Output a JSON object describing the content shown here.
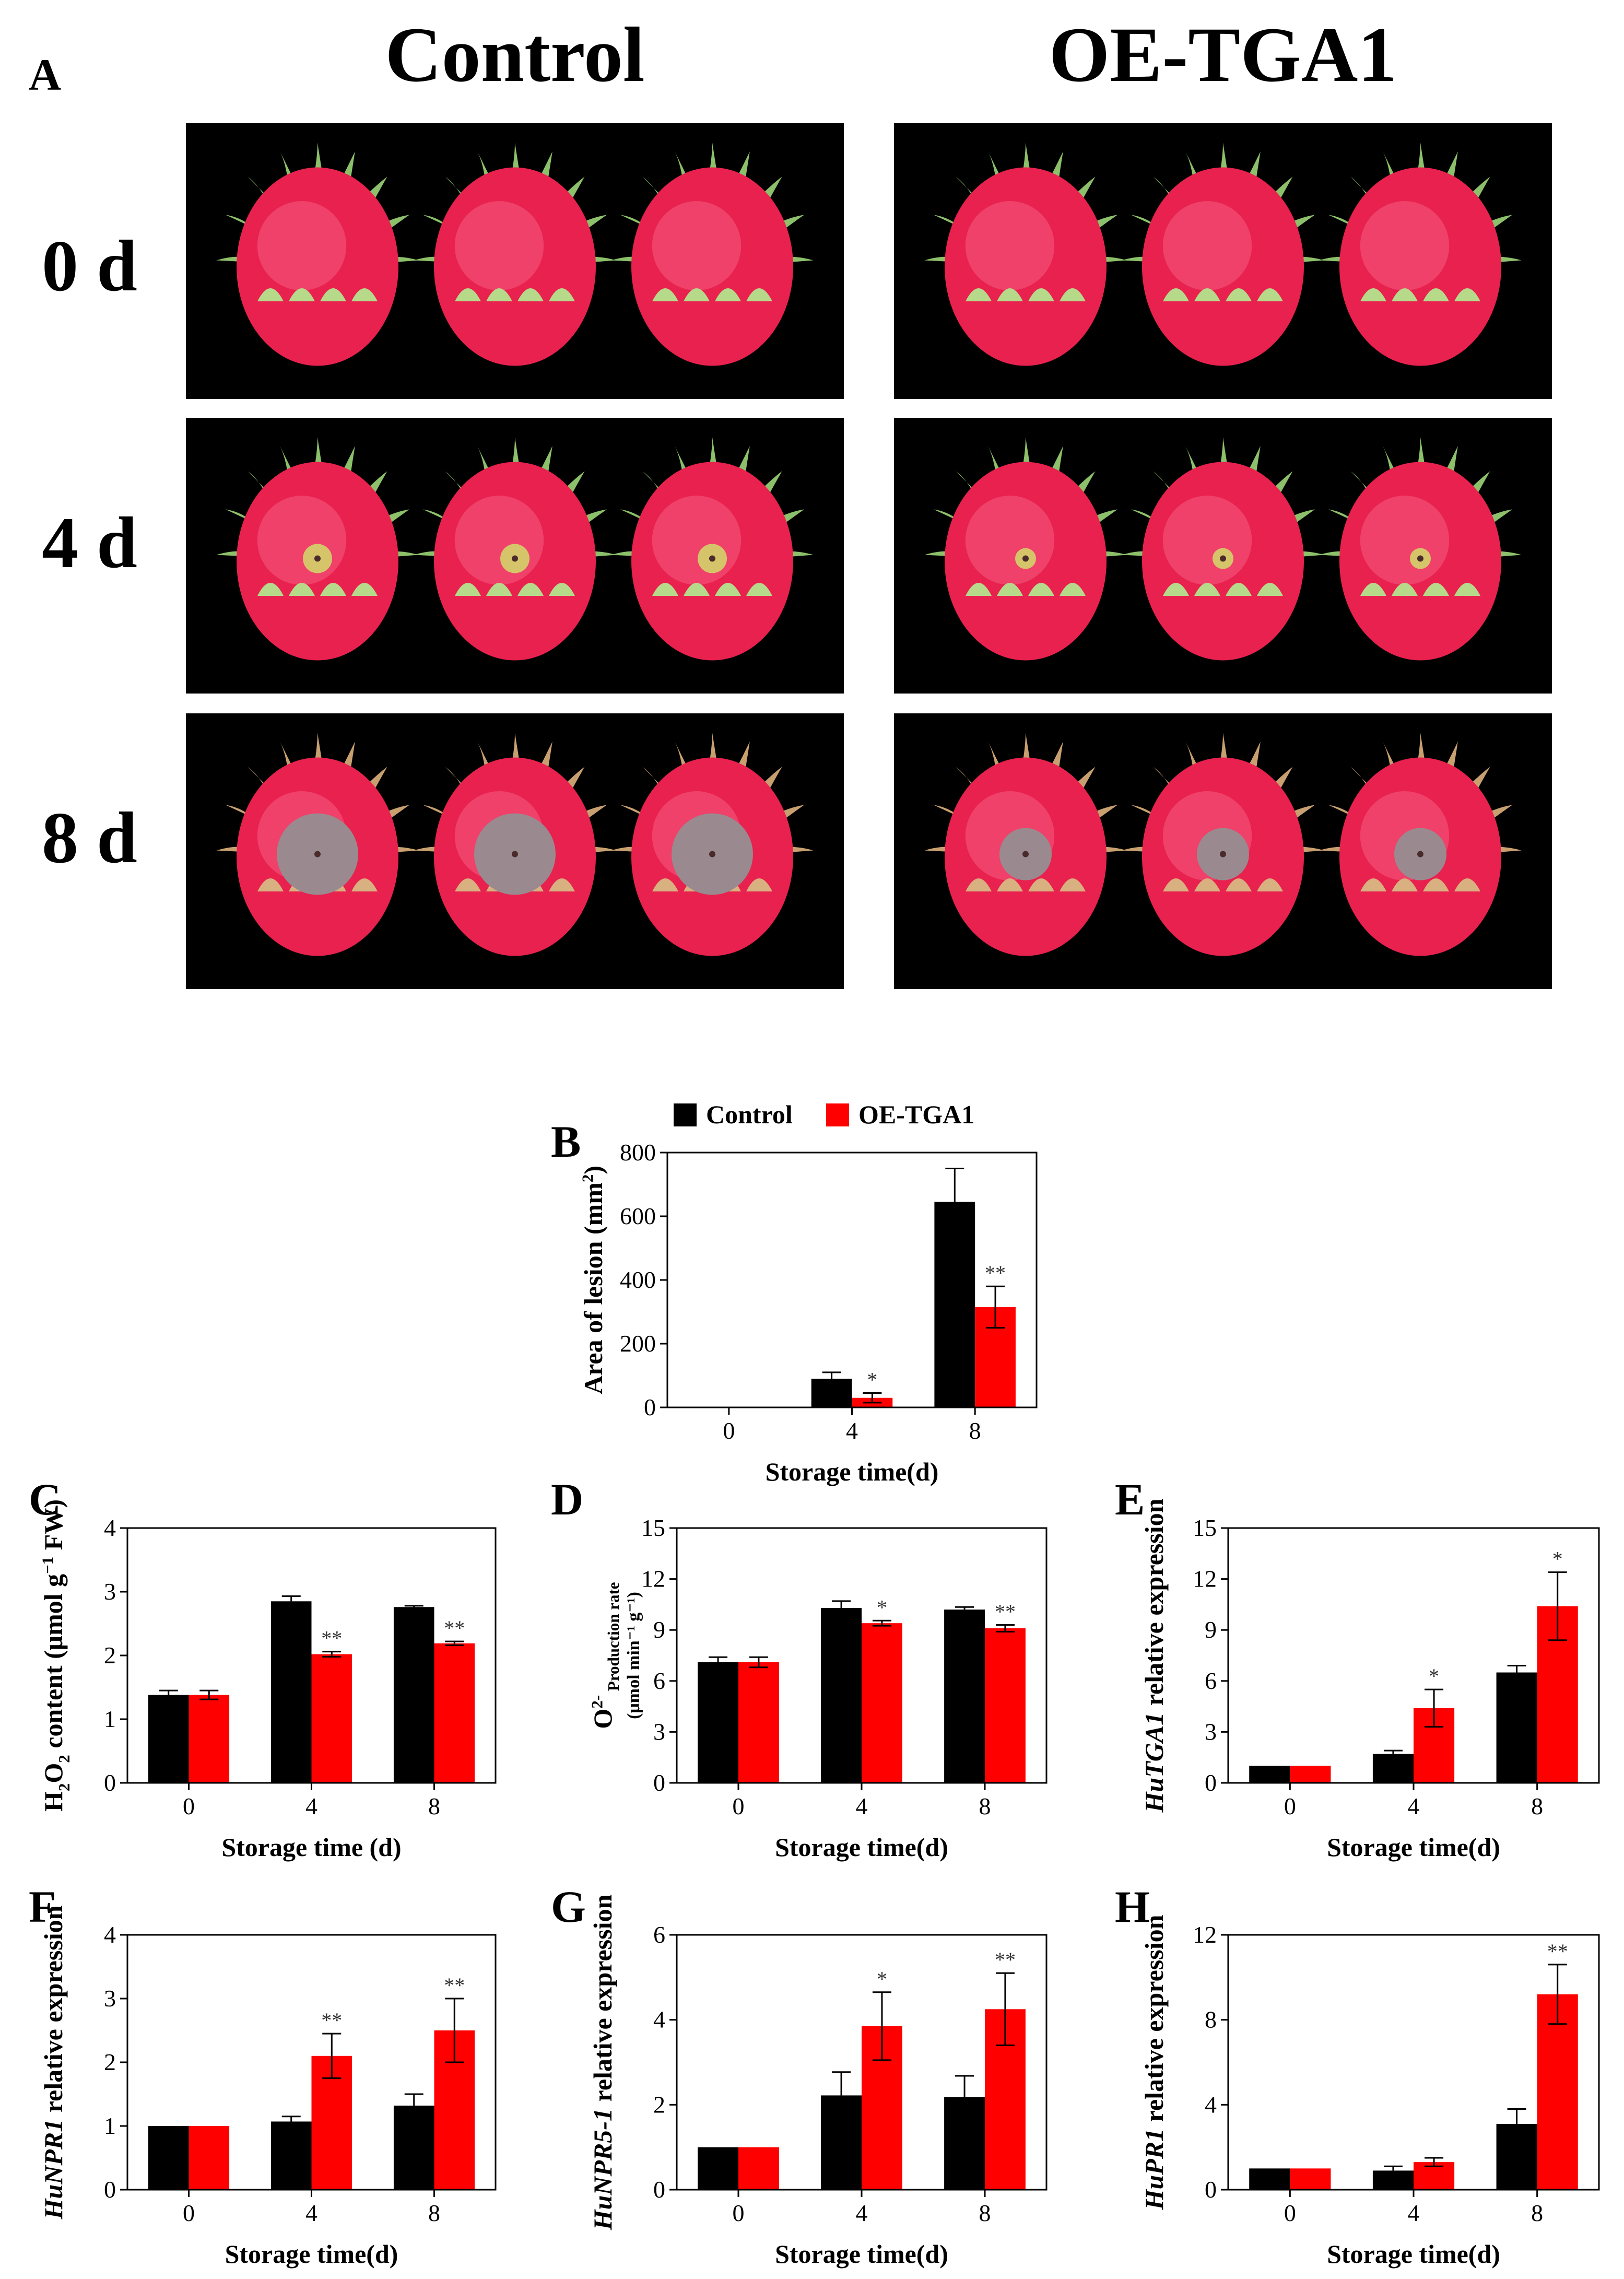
{
  "panel_a": {
    "letter": "A",
    "columns": [
      "Control",
      "OE-TGA1"
    ],
    "rows": [
      "0 d",
      "4 d",
      "8 d"
    ],
    "photo_caption": "Dragon fruit photographs"
  },
  "colors": {
    "control": "#000000",
    "treatment": "#ff0000",
    "photo_bg": "#000000"
  },
  "chart_data": [
    {
      "id": "B",
      "letter": "B",
      "type": "bar",
      "legend": [
        "Control",
        "OE-TGA1"
      ],
      "xlabel": "Storage time(d)",
      "ylabel_parts": [
        {
          "t": "Area of lesion (mm"
        },
        {
          "t": "2",
          "sup": true
        },
        {
          "t": ")"
        }
      ],
      "categories": [
        "0",
        "4",
        "8"
      ],
      "ylim": [
        0,
        800
      ],
      "yticks": [
        0,
        200,
        400,
        600,
        800
      ],
      "series": [
        {
          "name": "Control",
          "values": [
            0,
            90,
            645
          ],
          "errors": [
            0,
            20,
            105
          ]
        },
        {
          "name": "OE-TGA1",
          "values": [
            0,
            30,
            315
          ],
          "errors": [
            0,
            15,
            65
          ]
        }
      ],
      "sig": [
        null,
        "*",
        "**"
      ]
    },
    {
      "id": "C",
      "letter": "C",
      "type": "bar",
      "xlabel": "Storage time (d)",
      "ylabel_parts": [
        {
          "t": "H"
        },
        {
          "t": "2",
          "sub": true
        },
        {
          "t": "O"
        },
        {
          "t": "2",
          "sub": true
        },
        {
          "t": " content (μmol g"
        },
        {
          "t": "−1",
          "sup": true
        },
        {
          "t": " FW)"
        }
      ],
      "categories": [
        "0",
        "4",
        "8"
      ],
      "ylim": [
        0,
        4
      ],
      "yticks": [
        0,
        1,
        2,
        3,
        4
      ],
      "series": [
        {
          "name": "Control",
          "values": [
            1.38,
            2.85,
            2.76
          ],
          "errors": [
            0.07,
            0.08,
            0.02
          ]
        },
        {
          "name": "OE-TGA1",
          "values": [
            1.38,
            2.02,
            2.19
          ],
          "errors": [
            0.07,
            0.04,
            0.03
          ]
        }
      ],
      "sig": [
        null,
        "**",
        "**"
      ]
    },
    {
      "id": "D",
      "letter": "D",
      "type": "bar",
      "xlabel": "Storage time(d)",
      "ylabel_parts": [
        {
          "t": "O"
        },
        {
          "t": "2-",
          "sup": true
        },
        {
          "t": " Production rate",
          "sub": true
        }
      ],
      "ylabel_unit": "(μmol min⁻¹ g⁻¹)",
      "categories": [
        "0",
        "4",
        "8"
      ],
      "ylim": [
        0,
        15
      ],
      "yticks": [
        0,
        3,
        6,
        9,
        12,
        15
      ],
      "series": [
        {
          "name": "Control",
          "values": [
            7.1,
            10.3,
            10.2
          ],
          "errors": [
            0.3,
            0.4,
            0.15
          ]
        },
        {
          "name": "OE-TGA1",
          "values": [
            7.1,
            9.4,
            9.1
          ],
          "errors": [
            0.3,
            0.15,
            0.2
          ]
        }
      ],
      "sig": [
        null,
        "*",
        "**"
      ]
    },
    {
      "id": "E",
      "letter": "E",
      "type": "bar",
      "xlabel": "Storage time(d)",
      "ylabel_parts": [
        {
          "t": "HuTGA1",
          "it": true
        },
        {
          "t": " relative expression"
        }
      ],
      "categories": [
        "0",
        "4",
        "8"
      ],
      "ylim": [
        0,
        15
      ],
      "yticks": [
        0,
        3,
        6,
        9,
        12,
        15
      ],
      "series": [
        {
          "name": "Control",
          "values": [
            1.0,
            1.7,
            6.5
          ],
          "errors": [
            0,
            0.2,
            0.4
          ]
        },
        {
          "name": "OE-TGA1",
          "values": [
            1.0,
            4.4,
            10.4
          ],
          "errors": [
            0,
            1.1,
            2.0
          ]
        }
      ],
      "sig": [
        null,
        "*",
        "*"
      ]
    },
    {
      "id": "F",
      "letter": "F",
      "type": "bar",
      "xlabel": "Storage time(d)",
      "ylabel_parts": [
        {
          "t": "HuNPR1",
          "it": true
        },
        {
          "t": " relative expression"
        }
      ],
      "categories": [
        "0",
        "4",
        "8"
      ],
      "ylim": [
        0,
        4
      ],
      "yticks": [
        0,
        1,
        2,
        3,
        4
      ],
      "series": [
        {
          "name": "Control",
          "values": [
            1.0,
            1.07,
            1.32
          ],
          "errors": [
            0,
            0.08,
            0.18
          ]
        },
        {
          "name": "OE-TGA1",
          "values": [
            1.0,
            2.1,
            2.5
          ],
          "errors": [
            0,
            0.35,
            0.5
          ]
        }
      ],
      "sig": [
        null,
        "**",
        "**"
      ]
    },
    {
      "id": "G",
      "letter": "G",
      "type": "bar",
      "xlabel": "Storage time(d)",
      "ylabel_parts": [
        {
          "t": "HuNPR5-1",
          "it": true
        },
        {
          "t": " relative expression"
        }
      ],
      "categories": [
        "0",
        "4",
        "8"
      ],
      "ylim": [
        0,
        6
      ],
      "yticks": [
        0,
        2,
        4,
        6
      ],
      "series": [
        {
          "name": "Control",
          "values": [
            1.0,
            2.22,
            2.18
          ],
          "errors": [
            0,
            0.55,
            0.5
          ]
        },
        {
          "name": "OE-TGA1",
          "values": [
            1.0,
            3.85,
            4.25
          ],
          "errors": [
            0,
            0.8,
            0.85
          ]
        }
      ],
      "sig": [
        null,
        "*",
        "**"
      ]
    },
    {
      "id": "H",
      "letter": "H",
      "type": "bar",
      "xlabel": "Storage time(d)",
      "ylabel_parts": [
        {
          "t": "HuPR1",
          "it": true
        },
        {
          "t": " relative expression"
        }
      ],
      "categories": [
        "0",
        "4",
        "8"
      ],
      "ylim": [
        0,
        12
      ],
      "yticks": [
        0,
        4,
        8,
        12
      ],
      "series": [
        {
          "name": "Control",
          "values": [
            1.0,
            0.9,
            3.1
          ],
          "errors": [
            0,
            0.2,
            0.7
          ]
        },
        {
          "name": "OE-TGA1",
          "values": [
            1.0,
            1.3,
            9.2
          ],
          "errors": [
            0,
            0.2,
            1.4
          ]
        }
      ],
      "sig": [
        null,
        null,
        "**"
      ]
    }
  ]
}
